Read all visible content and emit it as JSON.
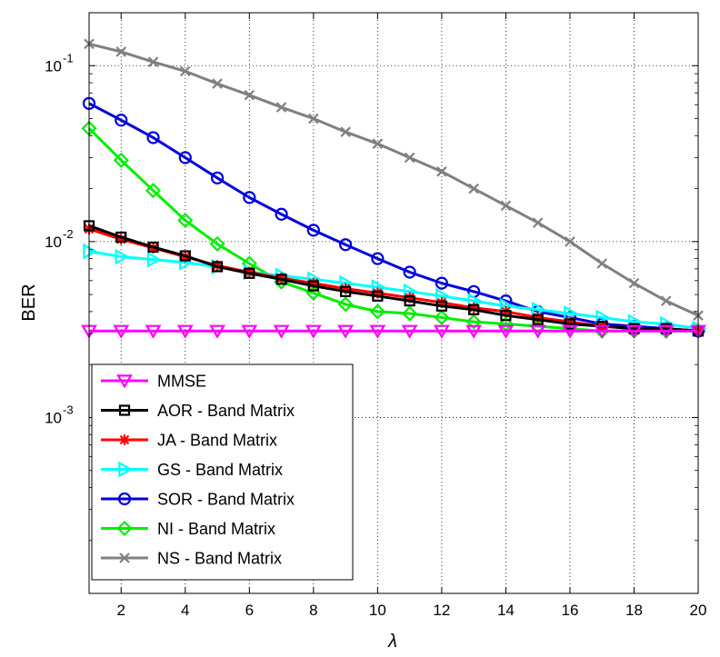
{
  "chart_data": {
    "type": "line",
    "title": "",
    "xlabel": "λ",
    "ylabel": "BER",
    "yscale": "log",
    "xlim": [
      1,
      20
    ],
    "ylim": [
      0.0001,
      0.2
    ],
    "grid": true,
    "legend_position": "bottom-left",
    "x": [
      1,
      2,
      3,
      4,
      5,
      6,
      7,
      8,
      9,
      10,
      11,
      12,
      13,
      14,
      15,
      16,
      17,
      18,
      19,
      20
    ],
    "x_ticks": [
      2,
      4,
      6,
      8,
      10,
      12,
      14,
      16,
      18,
      20
    ],
    "x_tick_labels": [
      "2",
      "4",
      "6",
      "8",
      "10",
      "12",
      "14",
      "16",
      "18",
      "20"
    ],
    "y_ticks": [
      0.1,
      0.01,
      0.001
    ],
    "y_tick_labels": [
      {
        "base": "10",
        "exp": "-1"
      },
      {
        "base": "10",
        "exp": "-2"
      },
      {
        "base": "10",
        "exp": "-3"
      }
    ],
    "series": [
      {
        "name": "MMSE",
        "color": "#ff00ff",
        "marker": "triangle-down",
        "values": [
          0.0031,
          0.0031,
          0.0031,
          0.0031,
          0.0031,
          0.0031,
          0.0031,
          0.0031,
          0.0031,
          0.0031,
          0.0031,
          0.0031,
          0.0031,
          0.0031,
          0.0031,
          0.0031,
          0.0031,
          0.0031,
          0.0031,
          0.0031
        ]
      },
      {
        "name": "AOR - Band Matrix",
        "color": "#000000",
        "marker": "square",
        "values": [
          0.0123,
          0.0106,
          0.0093,
          0.0083,
          0.0072,
          0.0066,
          0.0061,
          0.0056,
          0.0052,
          0.0049,
          0.0046,
          0.0043,
          0.0041,
          0.0038,
          0.0036,
          0.0034,
          0.0033,
          0.0032,
          0.0032,
          0.0031
        ]
      },
      {
        "name": "JA - Band Matrix",
        "color": "#ff0000",
        "marker": "star",
        "values": [
          0.0118,
          0.0103,
          0.0092,
          0.0082,
          0.0073,
          0.0067,
          0.0062,
          0.0058,
          0.0054,
          0.0051,
          0.0048,
          0.0045,
          0.0042,
          0.004,
          0.0037,
          0.0035,
          0.0033,
          0.0032,
          0.0032,
          0.0031
        ]
      },
      {
        "name": "GS - Band Matrix",
        "color": "#00ffff",
        "marker": "triangle-right",
        "values": [
          0.0088,
          0.0082,
          0.0079,
          0.0076,
          0.0072,
          0.0067,
          0.0064,
          0.0061,
          0.0058,
          0.0055,
          0.0052,
          0.0049,
          0.0046,
          0.0043,
          0.0041,
          0.0039,
          0.0037,
          0.0035,
          0.0034,
          0.0032
        ]
      },
      {
        "name": "SOR - Band Matrix",
        "color": "#0000dd",
        "marker": "circle",
        "values": [
          0.061,
          0.049,
          0.039,
          0.03,
          0.023,
          0.0178,
          0.0143,
          0.0116,
          0.0096,
          0.008,
          0.0067,
          0.0058,
          0.0052,
          0.0046,
          0.004,
          0.0037,
          0.0034,
          0.0033,
          0.0032,
          0.0031
        ]
      },
      {
        "name": "NI - Band Matrix",
        "color": "#00ee00",
        "marker": "diamond",
        "values": [
          0.044,
          0.029,
          0.0195,
          0.0132,
          0.0097,
          0.0075,
          0.0059,
          0.0051,
          0.0044,
          0.004,
          0.0039,
          0.0037,
          0.0035,
          0.0034,
          0.0033,
          0.0032,
          0.0031,
          0.0031,
          0.0031,
          0.0031
        ]
      },
      {
        "name": "NS - Band Matrix",
        "color": "#808080",
        "marker": "x",
        "values": [
          0.133,
          0.12,
          0.105,
          0.093,
          0.079,
          0.068,
          0.058,
          0.05,
          0.042,
          0.036,
          0.03,
          0.025,
          0.02,
          0.016,
          0.0128,
          0.01,
          0.0075,
          0.0058,
          0.0046,
          0.0038
        ]
      }
    ]
  }
}
